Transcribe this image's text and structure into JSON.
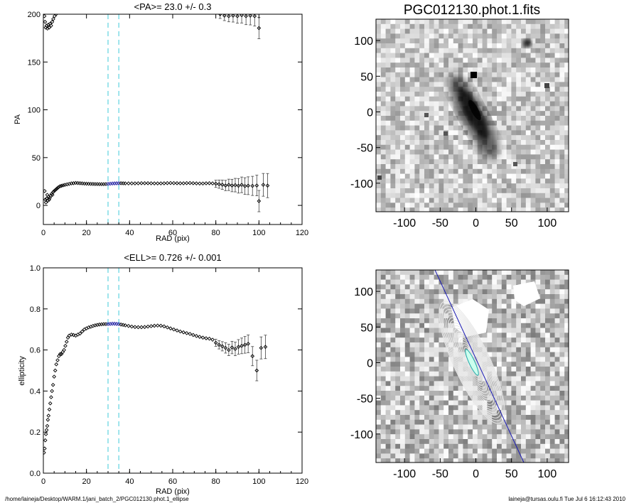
{
  "footer": {
    "path": "/home/laineja/Desktop/WARM.1/jani_batch_2/PGC012130.phot.1_ellipse",
    "stamp": "laineja@tursas.oulu.fi  Tue Jul  6 16:12:43 2010"
  },
  "chart_data": [
    {
      "type": "scatter",
      "title": "<PA>=  23.0 +/-   0.3",
      "xlabel": "RAD (pix)",
      "ylabel": "PA",
      "xlim": [
        0,
        120
      ],
      "ylim": [
        -20,
        200
      ],
      "xticks": [
        0,
        20,
        40,
        60,
        80,
        100,
        120
      ],
      "yticks": [
        0,
        50,
        100,
        150,
        200
      ],
      "reference_lines_x": [
        30,
        35
      ],
      "highlight_range_x": [
        30,
        35
      ],
      "colors": {
        "markers": "#000000",
        "highlight": "#1a1aa0",
        "reference": "#5fd3e0"
      },
      "series": [
        {
          "points": [
            [
              0.6,
              15
            ],
            [
              0.9,
              6
            ],
            [
              1.2,
              3
            ],
            [
              1.5,
              7
            ],
            [
              1.8,
              11
            ],
            [
              2.1,
              5
            ],
            [
              2.4,
              9
            ],
            [
              2.7,
              6
            ],
            [
              3,
              8
            ],
            [
              3.4,
              10
            ],
            [
              3.8,
              12
            ],
            [
              4.2,
              11
            ],
            [
              4.6,
              14
            ],
            [
              5,
              15
            ],
            [
              5.5,
              16
            ],
            [
              6,
              17
            ],
            [
              6.5,
              18
            ],
            [
              7,
              19
            ],
            [
              7.7,
              20
            ],
            [
              8.4,
              20.5
            ],
            [
              9.2,
              21
            ],
            [
              10,
              21.5
            ],
            [
              11,
              22
            ],
            [
              12,
              22.5
            ],
            [
              13,
              23
            ],
            [
              14,
              23.2
            ],
            [
              15,
              23.5
            ],
            [
              16,
              23.4
            ],
            [
              17,
              23.2
            ],
            [
              18,
              23
            ],
            [
              19,
              22.8
            ],
            [
              20,
              22.7
            ],
            [
              21,
              22.6
            ],
            [
              22,
              22.5
            ],
            [
              23,
              22.4
            ],
            [
              24,
              22.3
            ],
            [
              25,
              22.3
            ],
            [
              26,
              22.2
            ],
            [
              27,
              22.2
            ],
            [
              28,
              22.2
            ],
            [
              29,
              22.3
            ],
            [
              30,
              22.5
            ],
            [
              31,
              22.7
            ],
            [
              32,
              22.9
            ],
            [
              33,
              23
            ],
            [
              34,
              23.1
            ],
            [
              35,
              23.2
            ],
            [
              36,
              23.2
            ],
            [
              37,
              23.1
            ],
            [
              38,
              23
            ],
            [
              39.5,
              23
            ],
            [
              41,
              23
            ],
            [
              42.5,
              23
            ],
            [
              44,
              23.1
            ],
            [
              45.5,
              23.2
            ],
            [
              47,
              23.2
            ],
            [
              48.5,
              23.2
            ],
            [
              50,
              23.1
            ],
            [
              51.5,
              23
            ],
            [
              53,
              23
            ],
            [
              54.5,
              23
            ],
            [
              56,
              23.1
            ],
            [
              57.5,
              23.3
            ],
            [
              59,
              23.4
            ],
            [
              60.5,
              23.3
            ],
            [
              62,
              23.2
            ],
            [
              63.5,
              23.1
            ],
            [
              65,
              23.1
            ],
            [
              66.5,
              23.3
            ],
            [
              68,
              23.4
            ],
            [
              69.5,
              23.2
            ],
            [
              71,
              23
            ],
            [
              72.5,
              22.9
            ],
            [
              74,
              22.9
            ],
            [
              75.5,
              23.1
            ],
            [
              77,
              23.2
            ],
            [
              78.5,
              23
            ],
            [
              80,
              22.6
            ],
            [
              81.5,
              22.2
            ],
            [
              83,
              21.6
            ],
            [
              84.5,
              20.8
            ],
            [
              86,
              21.5
            ],
            [
              87.5,
              20.8
            ],
            [
              89,
              21.2
            ],
            [
              90.5,
              20.5
            ],
            [
              92,
              21.5
            ],
            [
              93.5,
              20.2
            ],
            [
              95,
              20.6
            ],
            [
              97,
              20.4
            ],
            [
              99,
              20.8
            ],
            [
              102,
              21.5
            ],
            [
              104,
              20.7
            ],
            [
              100,
              4.5
            ],
            [
              0.5,
              198
            ],
            [
              0.8,
              192
            ],
            [
              1.1,
              186
            ],
            [
              1.5,
              188
            ],
            [
              1.9,
              185
            ],
            [
              2.3,
              189
            ],
            [
              2.7,
              186
            ],
            [
              3.1,
              190
            ],
            [
              3.6,
              188
            ],
            [
              4.1,
              192
            ],
            [
              4.6,
              195
            ],
            [
              5.2,
              198
            ],
            [
              5.9,
              200
            ],
            [
              82,
              200
            ],
            [
              84,
              198.5
            ],
            [
              86,
              198
            ],
            [
              88,
              198.5
            ],
            [
              90,
              198
            ],
            [
              92,
              199
            ],
            [
              94,
              198
            ],
            [
              96,
              198.5
            ],
            [
              98,
              198
            ],
            [
              100,
              185.5
            ]
          ],
          "error_bars_from_x": 80
        }
      ]
    },
    {
      "type": "heatmap",
      "title": "PGC012130.phot.1.fits",
      "xlim": [
        -140,
        130
      ],
      "ylim": [
        -140,
        130
      ],
      "xticks": [
        -100,
        -50,
        0,
        50,
        100
      ],
      "yticks": [
        100,
        50,
        0,
        -50,
        -100
      ]
    },
    {
      "type": "scatter",
      "title": "<ELL>= 0.726 +/-  0.001",
      "xlabel": "RAD (pix)",
      "ylabel": "ellipticity",
      "xlim": [
        0,
        120
      ],
      "ylim": [
        0,
        1
      ],
      "xticks": [
        0,
        20,
        40,
        60,
        80,
        100,
        120
      ],
      "yticks": [
        0.0,
        0.2,
        0.4,
        0.6,
        0.8,
        1.0
      ],
      "ytick_labels": [
        "0.0",
        "0.2",
        "0.4",
        "0.6",
        "0.8",
        "1.0"
      ],
      "reference_lines_x": [
        30,
        35
      ],
      "highlight_range_x": [
        30,
        35
      ],
      "series": [
        {
          "points": [
            [
              0.3,
              0.1
            ],
            [
              0.6,
              0.12
            ],
            [
              0.9,
              0.16
            ],
            [
              1.2,
              0.19
            ],
            [
              1.5,
              0.21
            ],
            [
              1.8,
              0.23
            ],
            [
              2.1,
              0.26
            ],
            [
              2.4,
              0.28
            ],
            [
              2.8,
              0.31
            ],
            [
              3.2,
              0.34
            ],
            [
              3.6,
              0.37
            ],
            [
              4,
              0.4
            ],
            [
              4.5,
              0.43
            ],
            [
              5,
              0.47
            ],
            [
              5.5,
              0.5
            ],
            [
              6,
              0.53
            ],
            [
              6.6,
              0.55
            ],
            [
              7.2,
              0.57
            ],
            [
              7.8,
              0.58
            ],
            [
              8.4,
              0.58
            ],
            [
              9,
              0.59
            ],
            [
              9.6,
              0.6
            ],
            [
              10.2,
              0.62
            ],
            [
              10.8,
              0.64
            ],
            [
              11.4,
              0.66
            ],
            [
              12,
              0.67
            ],
            [
              13,
              0.675
            ],
            [
              14,
              0.673
            ],
            [
              15,
              0.67
            ],
            [
              16,
              0.675
            ],
            [
              17,
              0.68
            ],
            [
              18,
              0.69
            ],
            [
              19,
              0.7
            ],
            [
              20,
              0.705
            ],
            [
              21,
              0.71
            ],
            [
              22,
              0.713
            ],
            [
              23,
              0.717
            ],
            [
              24,
              0.72
            ],
            [
              25,
              0.722
            ],
            [
              26,
              0.724
            ],
            [
              27,
              0.725
            ],
            [
              28,
              0.726
            ],
            [
              29,
              0.726
            ],
            [
              30,
              0.726
            ],
            [
              31,
              0.727
            ],
            [
              32,
              0.728
            ],
            [
              33,
              0.728
            ],
            [
              34,
              0.727
            ],
            [
              35,
              0.726
            ],
            [
              36,
              0.724
            ],
            [
              37,
              0.722
            ],
            [
              38,
              0.72
            ],
            [
              39.5,
              0.717
            ],
            [
              41,
              0.714
            ],
            [
              42.5,
              0.712
            ],
            [
              44,
              0.711
            ],
            [
              45.5,
              0.711
            ],
            [
              47,
              0.712
            ],
            [
              48.5,
              0.714
            ],
            [
              50,
              0.716
            ],
            [
              51.5,
              0.718
            ],
            [
              53,
              0.719
            ],
            [
              54.5,
              0.718
            ],
            [
              56,
              0.715
            ],
            [
              57.5,
              0.71
            ],
            [
              59,
              0.705
            ],
            [
              60.5,
              0.7
            ],
            [
              62,
              0.695
            ],
            [
              63.5,
              0.69
            ],
            [
              65,
              0.686
            ],
            [
              66.5,
              0.682
            ],
            [
              68,
              0.678
            ],
            [
              69.5,
              0.673
            ],
            [
              71,
              0.668
            ],
            [
              72.5,
              0.664
            ],
            [
              74,
              0.66
            ],
            [
              75.5,
              0.657
            ],
            [
              77,
              0.655
            ],
            [
              78.5,
              0.65
            ],
            [
              80,
              0.635
            ],
            [
              81.5,
              0.625
            ],
            [
              83,
              0.618
            ],
            [
              84.5,
              0.61
            ],
            [
              86,
              0.6
            ],
            [
              87.5,
              0.612
            ],
            [
              89,
              0.605
            ],
            [
              90.5,
              0.615
            ],
            [
              92,
              0.62
            ],
            [
              93.5,
              0.625
            ],
            [
              95,
              0.63
            ],
            [
              97,
              0.57
            ],
            [
              99,
              0.5
            ],
            [
              101,
              0.61
            ],
            [
              103,
              0.615
            ]
          ],
          "error_bars_from_x": 80
        }
      ]
    },
    {
      "type": "heatmap",
      "xlim": [
        -140,
        130
      ],
      "ylim": [
        -140,
        130
      ],
      "xticks": [
        -100,
        -50,
        0,
        50,
        100
      ],
      "yticks": [
        100,
        50,
        0,
        -50,
        -100
      ]
    }
  ]
}
